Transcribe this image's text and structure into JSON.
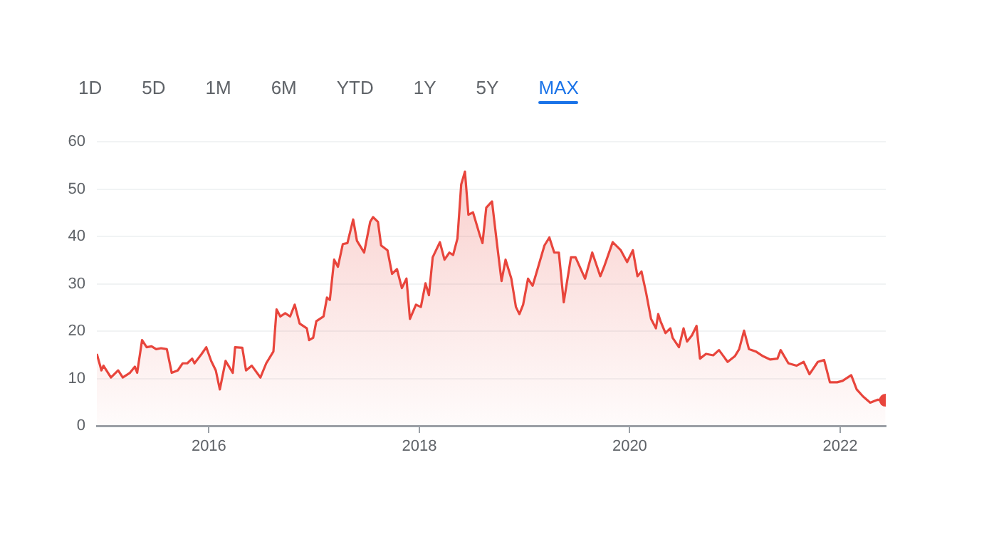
{
  "chart_data": {
    "type": "area",
    "annotations": [
      "1D",
      "5D",
      "1M",
      "6M",
      "YTD",
      "1Y",
      "5Y",
      "MAX"
    ],
    "xlim": [
      "2014-12-08",
      "2022-06-08"
    ],
    "xticks": [
      "2016",
      "2018",
      "2020",
      "2022"
    ],
    "ylim": [
      0,
      60
    ],
    "yticks": [
      0,
      10,
      20,
      30,
      40,
      50,
      60
    ],
    "grid": "y",
    "legend": false,
    "series": [
      {
        "color": "#e8453c",
        "x": [
          "2014-12-08",
          "2014-12-24",
          "2014-12-31",
          "2015-01-26",
          "2015-02-20",
          "2015-03-08",
          "2015-04-02",
          "2015-04-19",
          "2015-04-27",
          "2015-05-14",
          "2015-05-30",
          "2015-06-16",
          "2015-07-02",
          "2015-07-19",
          "2015-08-08",
          "2015-08-25",
          "2015-09-15",
          "2015-10-02",
          "2015-10-18",
          "2015-11-04",
          "2015-11-12",
          "2015-12-07",
          "2015-12-23",
          "2016-01-09",
          "2016-01-25",
          "2016-02-08",
          "2016-02-28",
          "2016-03-24",
          "2016-04-01",
          "2016-04-26",
          "2016-05-09",
          "2016-05-29",
          "2016-06-28",
          "2016-07-18",
          "2016-08-12",
          "2016-08-23",
          "2016-09-05",
          "2016-09-22",
          "2016-10-09",
          "2016-10-25",
          "2016-11-11",
          "2016-12-06",
          "2016-12-14",
          "2016-12-28",
          "2017-01-08",
          "2017-02-02",
          "2017-02-14",
          "2017-02-24",
          "2017-03-11",
          "2017-03-24",
          "2017-04-10",
          "2017-04-26",
          "2017-05-16",
          "2017-05-29",
          "2017-06-23",
          "2017-07-01",
          "2017-07-14",
          "2017-07-24",
          "2017-08-10",
          "2017-08-21",
          "2017-09-12",
          "2017-09-28",
          "2017-10-15",
          "2017-11-01",
          "2017-11-17",
          "2017-11-29",
          "2017-12-20",
          "2018-01-06",
          "2018-01-22",
          "2018-02-03",
          "2018-02-16",
          "2018-03-13",
          "2018-03-29",
          "2018-04-15",
          "2018-04-28",
          "2018-05-13",
          "2018-05-26",
          "2018-06-08",
          "2018-06-20",
          "2018-07-06",
          "2018-07-28",
          "2018-08-08",
          "2018-08-21",
          "2018-09-10",
          "2018-09-27",
          "2018-10-13",
          "2018-10-27",
          "2018-11-16",
          "2018-12-02",
          "2018-12-14",
          "2018-12-27",
          "2019-01-13",
          "2019-01-29",
          "2019-02-15",
          "2019-03-11",
          "2019-03-28",
          "2019-04-14",
          "2019-04-30",
          "2019-05-17",
          "2019-06-11",
          "2019-06-27",
          "2019-07-30",
          "2019-08-24",
          "2019-09-21",
          "2019-10-04",
          "2019-11-03",
          "2019-12-01",
          "2019-12-23",
          "2020-01-12",
          "2020-01-28",
          "2020-02-11",
          "2020-02-27",
          "2020-03-15",
          "2020-04-01",
          "2020-04-09",
          "2020-04-17",
          "2020-05-04",
          "2020-05-21",
          "2020-05-29",
          "2020-06-20",
          "2020-07-06",
          "2020-07-18",
          "2020-08-04",
          "2020-08-20",
          "2020-09-01",
          "2020-09-22",
          "2020-10-17",
          "2020-11-06",
          "2020-12-06",
          "2020-12-31",
          "2021-01-15",
          "2021-02-01",
          "2021-02-18",
          "2021-03-14",
          "2021-04-08",
          "2021-05-03",
          "2021-05-28",
          "2021-06-08",
          "2021-07-05",
          "2021-08-02",
          "2021-08-27",
          "2021-09-16",
          "2021-10-15",
          "2021-11-06",
          "2021-11-26",
          "2021-12-21",
          "2022-01-09",
          "2022-02-08",
          "2022-02-27",
          "2022-03-21",
          "2022-04-15",
          "2022-05-10",
          "2022-06-07"
        ],
        "values": [
          15.2,
          11.7,
          12.7,
          10.2,
          11.7,
          10.2,
          11.2,
          12.5,
          11.2,
          18.1,
          16.6,
          16.8,
          16.2,
          16.4,
          16.2,
          11.2,
          11.7,
          13.2,
          13.2,
          14.2,
          13.2,
          15.2,
          16.6,
          13.7,
          11.7,
          7.7,
          13.7,
          11.2,
          16.6,
          16.5,
          11.7,
          12.7,
          10.2,
          13.2,
          15.7,
          24.6,
          23.1,
          23.8,
          23.1,
          25.6,
          21.6,
          20.6,
          18.1,
          18.6,
          22.1,
          23.1,
          27.1,
          26.6,
          35.1,
          33.6,
          38.4,
          38.6,
          43.6,
          39.1,
          36.6,
          39.1,
          43.1,
          44.1,
          43.1,
          38.1,
          37.1,
          32.1,
          33.1,
          29.1,
          31.1,
          22.6,
          25.6,
          25.1,
          30.1,
          27.6,
          35.6,
          38.8,
          35.1,
          36.6,
          36.1,
          39.6,
          51.0,
          53.7,
          44.6,
          45.1,
          40.6,
          38.6,
          46.1,
          47.4,
          38.6,
          30.6,
          35.1,
          31.1,
          25.1,
          23.6,
          25.6,
          31.1,
          29.6,
          33.1,
          38.1,
          39.8,
          36.6,
          36.6,
          26.1,
          35.6,
          35.6,
          31.1,
          36.6,
          31.6,
          33.6,
          38.8,
          37.1,
          34.6,
          37.1,
          31.6,
          32.6,
          28.1,
          22.6,
          20.6,
          23.6,
          22.1,
          19.6,
          20.6,
          18.6,
          16.6,
          20.6,
          17.8,
          19.1,
          21.1,
          14.2,
          15.2,
          14.9,
          16.0,
          13.5,
          14.7,
          16.2,
          20.1,
          16.2,
          15.7,
          14.7,
          14.0,
          14.2,
          16.0,
          13.2,
          12.7,
          13.5,
          10.9,
          13.5,
          13.9,
          9.2,
          9.2,
          9.5,
          10.7,
          7.7,
          6.2,
          4.9,
          5.5,
          5.4
        ]
      }
    ]
  }
}
